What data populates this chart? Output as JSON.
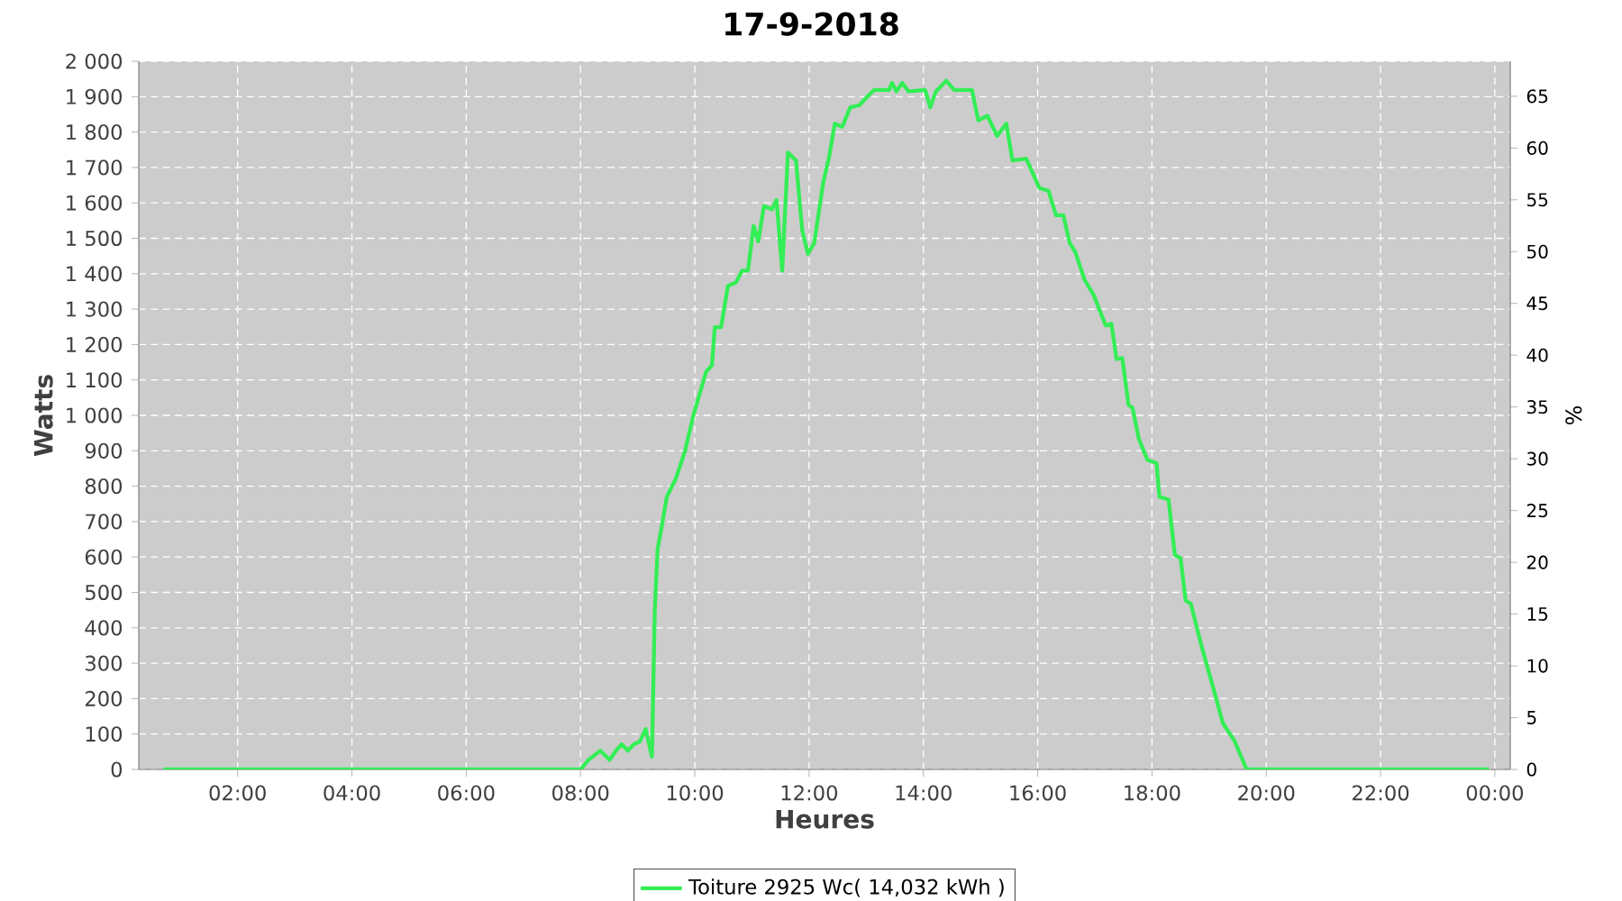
{
  "chart_data": {
    "type": "line",
    "title": "17-9-2018",
    "xlabel": "Heures",
    "ylabel": "Watts",
    "y2label": "%",
    "x": [
      0.7,
      8.0,
      8.14,
      8.35,
      8.51,
      8.62,
      8.72,
      8.83,
      8.93,
      9.04,
      9.14,
      9.25,
      9.3,
      9.35,
      9.41,
      9.51,
      9.67,
      9.83,
      9.98,
      10.2,
      10.3,
      10.35,
      10.46,
      10.58,
      10.72,
      10.83,
      10.93,
      11.03,
      11.11,
      11.21,
      11.35,
      11.43,
      11.53,
      11.63,
      11.77,
      11.88,
      11.98,
      12.09,
      12.25,
      12.35,
      12.45,
      12.58,
      12.72,
      12.88,
      13.03,
      13.14,
      13.4,
      13.45,
      13.53,
      13.63,
      13.74,
      14.03,
      14.12,
      14.22,
      14.4,
      14.54,
      14.85,
      14.96,
      15.12,
      15.29,
      15.45,
      15.56,
      15.8,
      16.03,
      16.19,
      16.32,
      16.45,
      16.56,
      16.66,
      16.82,
      16.98,
      17.19,
      17.29,
      17.38,
      17.48,
      17.59,
      17.66,
      17.77,
      17.92,
      18.08,
      18.13,
      18.29,
      18.4,
      18.5,
      18.59,
      18.68,
      18.87,
      19.08,
      19.24,
      19.45,
      19.63,
      19.66,
      23.9
    ],
    "series": [
      {
        "name": "Toiture 2925 Wc( 14,032 kWh )",
        "color": "#33ee55",
        "values": [
          0,
          0,
          27,
          53,
          27,
          53,
          71,
          53,
          71,
          79,
          114,
          36,
          451,
          623,
          675,
          770,
          822,
          900,
          1003,
          1124,
          1141,
          1249,
          1249,
          1366,
          1375,
          1409,
          1409,
          1535,
          1491,
          1591,
          1582,
          1608,
          1409,
          1742,
          1720,
          1522,
          1456,
          1487,
          1660,
          1729,
          1824,
          1815,
          1870,
          1876,
          1902,
          1919,
          1919,
          1939,
          1915,
          1939,
          1915,
          1919,
          1870,
          1915,
          1945,
          1919,
          1919,
          1833,
          1846,
          1789,
          1824,
          1720,
          1725,
          1642,
          1634,
          1565,
          1565,
          1487,
          1461,
          1383,
          1340,
          1254,
          1259,
          1159,
          1162,
          1030,
          1021,
          934,
          874,
          865,
          770,
          762,
          606,
          597,
          477,
          468,
          347,
          226,
          131,
          79,
          10,
          0,
          0
        ]
      }
    ],
    "xlim": [
      0.27,
      24.27
    ],
    "xticks": [
      {
        "value": 2,
        "label": "02:00"
      },
      {
        "value": 4,
        "label": "04:00"
      },
      {
        "value": 6,
        "label": "06:00"
      },
      {
        "value": 8,
        "label": "08:00"
      },
      {
        "value": 10,
        "label": "10:00"
      },
      {
        "value": 12,
        "label": "12:00"
      },
      {
        "value": 14,
        "label": "14:00"
      },
      {
        "value": 16,
        "label": "16:00"
      },
      {
        "value": 18,
        "label": "18:00"
      },
      {
        "value": 20,
        "label": "20:00"
      },
      {
        "value": 22,
        "label": "22:00"
      },
      {
        "value": 24,
        "label": "00:00"
      }
    ],
    "ylim": [
      0,
      2000
    ],
    "yticks": [
      0,
      100,
      200,
      300,
      400,
      500,
      600,
      700,
      800,
      900,
      {
        "value": 1000,
        "label": "1 000"
      },
      {
        "value": 1100,
        "label": "1 100"
      },
      {
        "value": 1200,
        "label": "1 200"
      },
      {
        "value": 1300,
        "label": "1 300"
      },
      {
        "value": 1400,
        "label": "1 400"
      },
      {
        "value": 1500,
        "label": "1 500"
      },
      {
        "value": 1600,
        "label": "1 600"
      },
      {
        "value": 1700,
        "label": "1 700"
      },
      {
        "value": 1800,
        "label": "1 800"
      },
      {
        "value": 1900,
        "label": "1 900"
      },
      {
        "value": 2000,
        "label": "2 000"
      }
    ],
    "y2lim": [
      0,
      68.38
    ],
    "y2ticks": [
      0,
      5,
      10,
      15,
      20,
      25,
      30,
      35,
      40,
      45,
      50,
      55,
      60,
      65
    ],
    "grid": true,
    "legend": "bottom",
    "marker": "none",
    "line_style": "solid"
  }
}
